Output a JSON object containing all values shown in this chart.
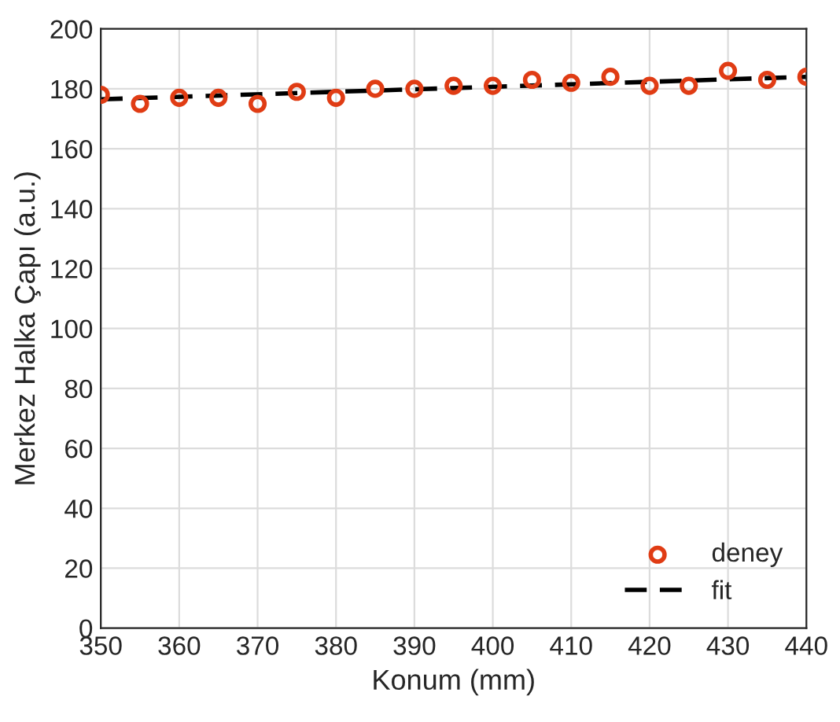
{
  "chart_data": {
    "type": "scatter",
    "xlabel": "Konum (mm)",
    "ylabel": "Merkez Halka Çapı (a.u.)",
    "xlim": [
      350,
      440
    ],
    "xticks": [
      350,
      360,
      370,
      380,
      390,
      400,
      410,
      420,
      430,
      440
    ],
    "ylim": [
      0,
      200
    ],
    "yticks": [
      0,
      20,
      40,
      60,
      80,
      100,
      120,
      140,
      160,
      180,
      200
    ],
    "grid": true,
    "legend": "bottom right",
    "series": [
      {
        "name": "deney",
        "color": "#e03c14",
        "marker": "circle",
        "x": [
          350,
          355,
          360,
          365,
          370,
          375,
          380,
          385,
          390,
          395,
          400,
          405,
          410,
          415,
          420,
          425,
          430,
          435,
          440
        ],
        "values": [
          178,
          175,
          177,
          177,
          175,
          179,
          177,
          180,
          180,
          181,
          181,
          183,
          182,
          184,
          181,
          181,
          186,
          183,
          184
        ]
      },
      {
        "name": "fit",
        "type": "line",
        "color": "#000000",
        "line_style": "dashed",
        "x": [
          350,
          440
        ],
        "values": [
          176.5,
          184
        ]
      }
    ]
  }
}
